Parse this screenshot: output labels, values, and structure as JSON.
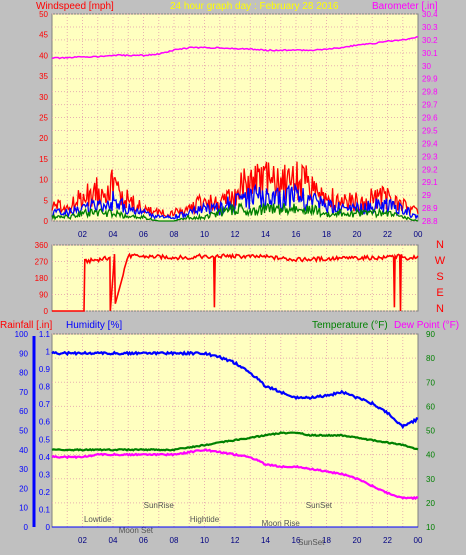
{
  "colors": {
    "background": "#c0c0c0",
    "plot_bg": "#ffffc0",
    "grid": "#e8b0b0",
    "wind_gust": "#ff0000",
    "wind_avg": "#0000ff",
    "wind_low": "#008000",
    "barometer": "#ff00ff",
    "direction": "#ff0000",
    "humidity": "#0000ff",
    "temperature": "#008000",
    "dew_point": "#ff00ff",
    "rain": "#0000ff",
    "title": "#ffff00",
    "annotation": "#555555"
  },
  "top": {
    "wind_label": "Windspeed [mph]",
    "title": "24 hour graph day : February 28 2016",
    "baro_label": "Barometer [.in]"
  },
  "bottom": {
    "rain_label": "Rainfall [.in]",
    "hum_label": "Humidity [%]",
    "temp_label": "Temperature (°F)",
    "dew_label": "Dew Point (°F)"
  },
  "chart_data": [
    {
      "type": "line",
      "title": "24 hour graph day : February 28 2016",
      "x_ticks": [
        "02",
        "04",
        "06",
        "08",
        "10",
        "12",
        "14",
        "16",
        "18",
        "20",
        "22",
        "00"
      ],
      "ylabel": "Windspeed [mph]",
      "ylim": [
        0,
        50
      ],
      "y_ticks": [
        0,
        5,
        10,
        15,
        20,
        25,
        30,
        35,
        40,
        45,
        50
      ],
      "y2label": "Barometer [.in]",
      "y2lim": [
        28.8,
        30.4
      ],
      "y2_ticks": [
        "28.8",
        "28.9",
        "29",
        "29.1",
        "29.2",
        "29.3",
        "29.4",
        "29.5",
        "29.6",
        "29.7",
        "29.8",
        "29.9",
        "30",
        "30.1",
        "30.2",
        "30.3",
        "30.4"
      ],
      "hours": [
        0,
        1,
        2,
        3,
        4,
        5,
        6,
        7,
        8,
        9,
        10,
        11,
        12,
        13,
        14,
        15,
        16,
        17,
        18,
        19,
        20,
        21,
        22,
        23,
        24
      ],
      "series": [
        {
          "name": "Barometer [.in]",
          "axis": "right",
          "values": [
            30.06,
            30.06,
            30.07,
            30.07,
            30.08,
            30.08,
            30.08,
            30.09,
            30.12,
            30.14,
            30.14,
            30.14,
            30.13,
            30.13,
            30.12,
            30.12,
            30.12,
            30.12,
            30.13,
            30.14,
            30.16,
            30.17,
            30.19,
            30.2,
            30.22
          ]
        },
        {
          "name": "Windspeed [mph]",
          "axis": "left",
          "values": [
            4,
            3,
            6,
            8,
            9,
            5,
            3,
            2,
            2,
            3,
            5,
            4,
            7,
            10,
            10,
            10,
            10,
            9,
            6,
            5,
            5,
            6,
            6,
            4,
            2
          ]
        },
        {
          "values": [
            2,
            2,
            3,
            4,
            5,
            3,
            2,
            1,
            1,
            2,
            3,
            3,
            5,
            6,
            6,
            6,
            6,
            5,
            4,
            3,
            3,
            4,
            4,
            3,
            1
          ]
        },
        {
          "values": [
            1,
            1,
            2,
            2,
            2,
            1,
            1,
            0,
            0,
            1,
            1,
            2,
            3,
            3,
            3,
            3,
            3,
            3,
            2,
            2,
            2,
            2,
            2,
            1,
            0
          ]
        }
      ]
    },
    {
      "type": "line",
      "x_ticks": [],
      "ylim": [
        0,
        360
      ],
      "y_ticks": [
        0,
        90,
        180,
        270,
        360
      ],
      "compass": [
        "N",
        "W",
        "S",
        "E",
        "N"
      ],
      "hours": [
        0,
        2.1,
        2.15,
        3.8,
        3.82,
        4.1,
        4.15,
        5.0,
        9.0,
        9.5,
        10.6,
        10.65,
        10.7,
        11.0,
        14.0,
        16.0,
        18.0,
        20.0,
        22.0,
        22.4,
        22.45,
        22.5,
        22.8,
        22.85,
        22.9,
        23.3,
        24
      ],
      "series": [
        {
          "name": "Wind direction",
          "values": [
            0,
            0,
            270,
            290,
            0,
            300,
            40,
            300,
            290,
            300,
            290,
            20,
            290,
            300,
            295,
            280,
            285,
            290,
            290,
            300,
            20,
            300,
            300,
            0,
            300,
            290,
            300
          ]
        }
      ]
    },
    {
      "type": "line",
      "x_ticks": [
        "02",
        "04",
        "06",
        "08",
        "10",
        "12",
        "14",
        "16",
        "18",
        "20",
        "22",
        "00"
      ],
      "annotations": [
        {
          "text": "Lowtide",
          "hour": 3.0
        },
        {
          "text": "Moon Set",
          "hour": 5.5
        },
        {
          "text": "SunRise",
          "hour": 7.0
        },
        {
          "text": "Hightide",
          "hour": 10.0
        },
        {
          "text": "Moon Rise",
          "hour": 15.0
        },
        {
          "text": "SunSet",
          "hour": 17.5
        },
        {
          "text": "SunSet",
          "hour": 17.0
        }
      ],
      "y_left_outer_label": "Rainfall [.in]",
      "y_left_outer_ticks": [
        "0",
        "0.1",
        "0.2",
        "0.3",
        "0.4",
        "0.5",
        "0.6",
        "0.7",
        "0.8",
        "0.9",
        "1",
        "1.1"
      ],
      "rain_lim": [
        0,
        1.1
      ],
      "y_left_label": "Humidity [%]",
      "y_left_ticks": [
        0,
        10,
        20,
        30,
        40,
        50,
        60,
        70,
        80,
        90,
        100
      ],
      "hum_lim": [
        0,
        100
      ],
      "y_right_label": "Temperature (°F)",
      "y_right_ticks": [
        10,
        20,
        30,
        40,
        50,
        60,
        70,
        80,
        90
      ],
      "temp_lim": [
        10,
        90
      ],
      "hours": [
        0,
        1,
        2,
        3,
        4,
        5,
        6,
        7,
        8,
        9,
        10,
        11,
        12,
        13,
        14,
        15,
        16,
        17,
        18,
        19,
        20,
        21,
        22,
        23,
        24
      ],
      "series": [
        {
          "name": "Humidity [%]",
          "values": [
            90,
            90,
            90,
            90,
            90,
            90,
            90,
            90,
            90,
            90,
            90,
            88,
            85,
            80,
            73,
            70,
            67,
            67,
            68,
            70,
            67,
            64,
            59,
            52,
            56
          ]
        },
        {
          "name": "Temperature (°F)",
          "values": [
            42,
            42,
            42,
            42,
            42,
            42,
            42,
            42,
            42,
            43,
            44,
            45,
            46,
            47,
            48,
            49,
            49,
            48,
            48,
            48,
            47,
            46,
            45,
            44,
            42
          ]
        },
        {
          "name": "Dew Point (°F)",
          "values": [
            39,
            39,
            39,
            40,
            40,
            40,
            40,
            40,
            40,
            41,
            42,
            41,
            40,
            39,
            36,
            35,
            35,
            34,
            33,
            32,
            30,
            27,
            24,
            22,
            22
          ]
        },
        {
          "name": "Rainfall [.in]",
          "values": [
            0,
            0,
            0,
            0,
            0,
            0,
            0,
            0,
            0,
            0,
            0,
            0,
            0,
            0,
            0,
            0,
            0,
            0,
            0,
            0,
            0,
            0,
            0,
            0,
            0
          ]
        }
      ]
    }
  ]
}
